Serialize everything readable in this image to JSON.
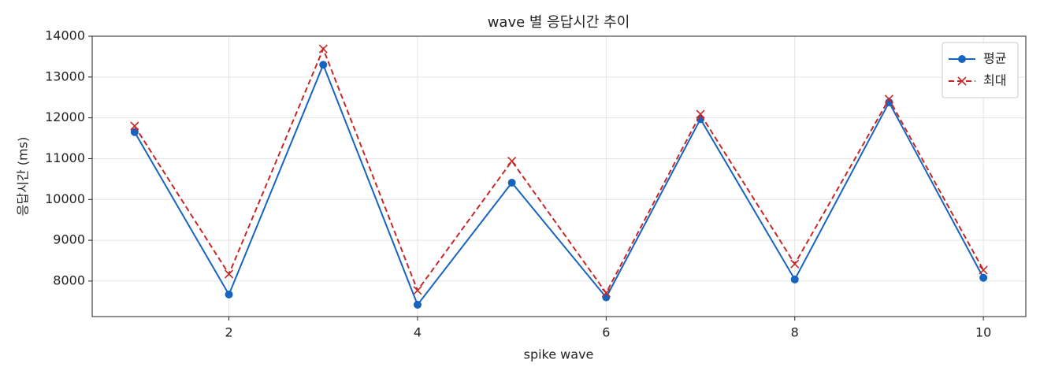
{
  "chart_data": {
    "type": "line",
    "title": "wave 별 응답시간 추이",
    "x_label": "spike wave",
    "y_label": "응답시간 (ms)",
    "x": [
      1,
      2,
      3,
      4,
      5,
      6,
      7,
      8,
      9,
      10
    ],
    "series": [
      {
        "name": "평균",
        "color": "#1565c0",
        "marker": "o",
        "linestyle": "solid",
        "values": [
          11650,
          7670,
          13300,
          7420,
          10410,
          7600,
          11970,
          8040,
          12380,
          8080
        ]
      },
      {
        "name": "최대",
        "color": "#c62828",
        "marker": "x",
        "linestyle": "dashed",
        "values": [
          11800,
          8170,
          13690,
          7770,
          10940,
          7710,
          12090,
          8420,
          12460,
          8270
        ]
      }
    ],
    "xlim": [
      0.55,
      10.45
    ],
    "xticks": [
      2,
      4,
      6,
      8,
      10
    ],
    "ylim": [
      7130,
      14000
    ],
    "yticks": [
      8000,
      9000,
      10000,
      11000,
      12000,
      13000,
      14000
    ],
    "grid": true,
    "legend": "upper right"
  }
}
